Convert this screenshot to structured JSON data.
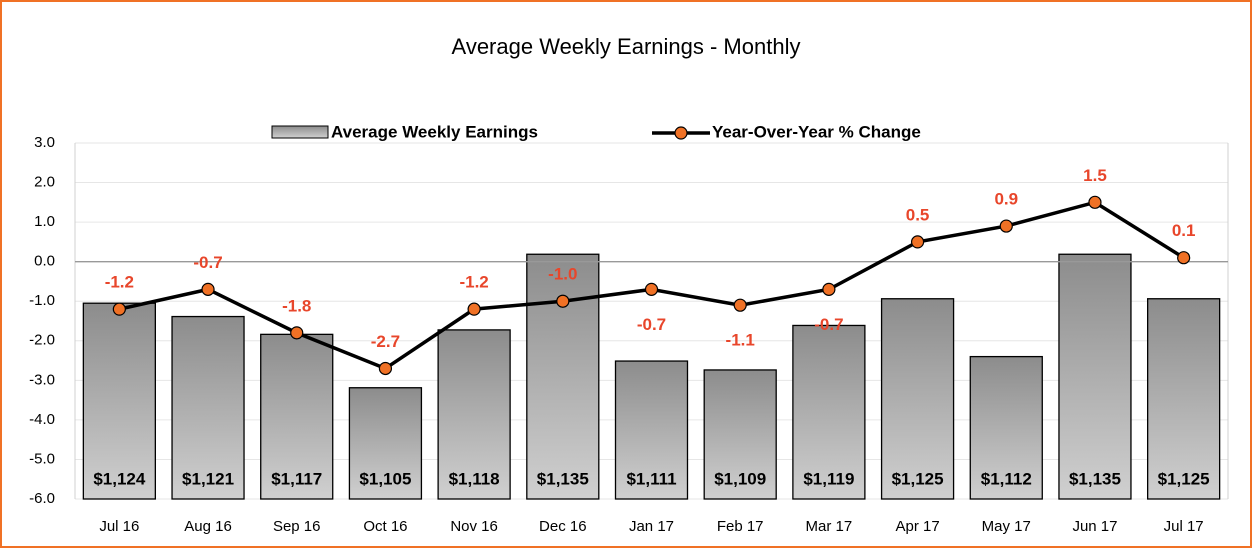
{
  "chart_data": {
    "type": "bar_line",
    "title": "Average Weekly Earnings - Monthly",
    "categories": [
      "Jul 16",
      "Aug 16",
      "Sep 16",
      "Oct 16",
      "Nov 16",
      "Dec 16",
      "Jan 17",
      "Feb 17",
      "Mar 17",
      "Apr 17",
      "May 17",
      "Jun 17",
      "Jul 17"
    ],
    "series": [
      {
        "name": "Average Weekly Earnings",
        "type": "bar",
        "axis": "y2",
        "color": "#9a9a9a",
        "values": [
          1124,
          1121,
          1117,
          1105,
          1118,
          1135,
          1111,
          1109,
          1119,
          1125,
          1112,
          1135,
          1125
        ],
        "value_labels": [
          "$1,124",
          "$1,121",
          "$1,117",
          "$1,105",
          "$1,118",
          "$1,135",
          "$1,111",
          "$1,109",
          "$1,119",
          "$1,125",
          "$1,112",
          "$1,135",
          "$1,125"
        ]
      },
      {
        "name": "Year-Over-Year % Change",
        "type": "line",
        "color": "#000000",
        "marker_color": "#f07125",
        "label_color": "#e8462b",
        "values": [
          -1.2,
          -0.7,
          -1.8,
          -2.7,
          -1.2,
          -1.0,
          -0.7,
          -1.1,
          -0.7,
          0.5,
          0.9,
          1.5,
          0.1
        ],
        "value_labels": [
          "-1.2",
          "-0.7",
          "-1.8",
          "-2.7",
          "-1.2",
          "-1.0",
          "-0.7",
          "-1.1",
          "-0.7",
          "0.5",
          "0.9",
          "1.5",
          "0.1"
        ]
      }
    ],
    "ylim": [
      -6,
      3
    ],
    "yticks": [
      {
        "value": 3,
        "label": "3.0"
      },
      {
        "value": 2,
        "label": "2.0"
      },
      {
        "value": 1,
        "label": "1.0"
      },
      {
        "value": 0,
        "label": "0.0"
      },
      {
        "value": -1,
        "label": "-1.0"
      },
      {
        "value": -2,
        "label": "-2.0"
      },
      {
        "value": -3,
        "label": "-3.0"
      },
      {
        "value": -4,
        "label": "-4.0"
      },
      {
        "value": -5,
        "label": "-5.0"
      },
      {
        "value": -6,
        "label": "-6.0"
      }
    ],
    "y2lim": [
      1080,
      1160
    ],
    "grid": true,
    "legend": "top"
  }
}
